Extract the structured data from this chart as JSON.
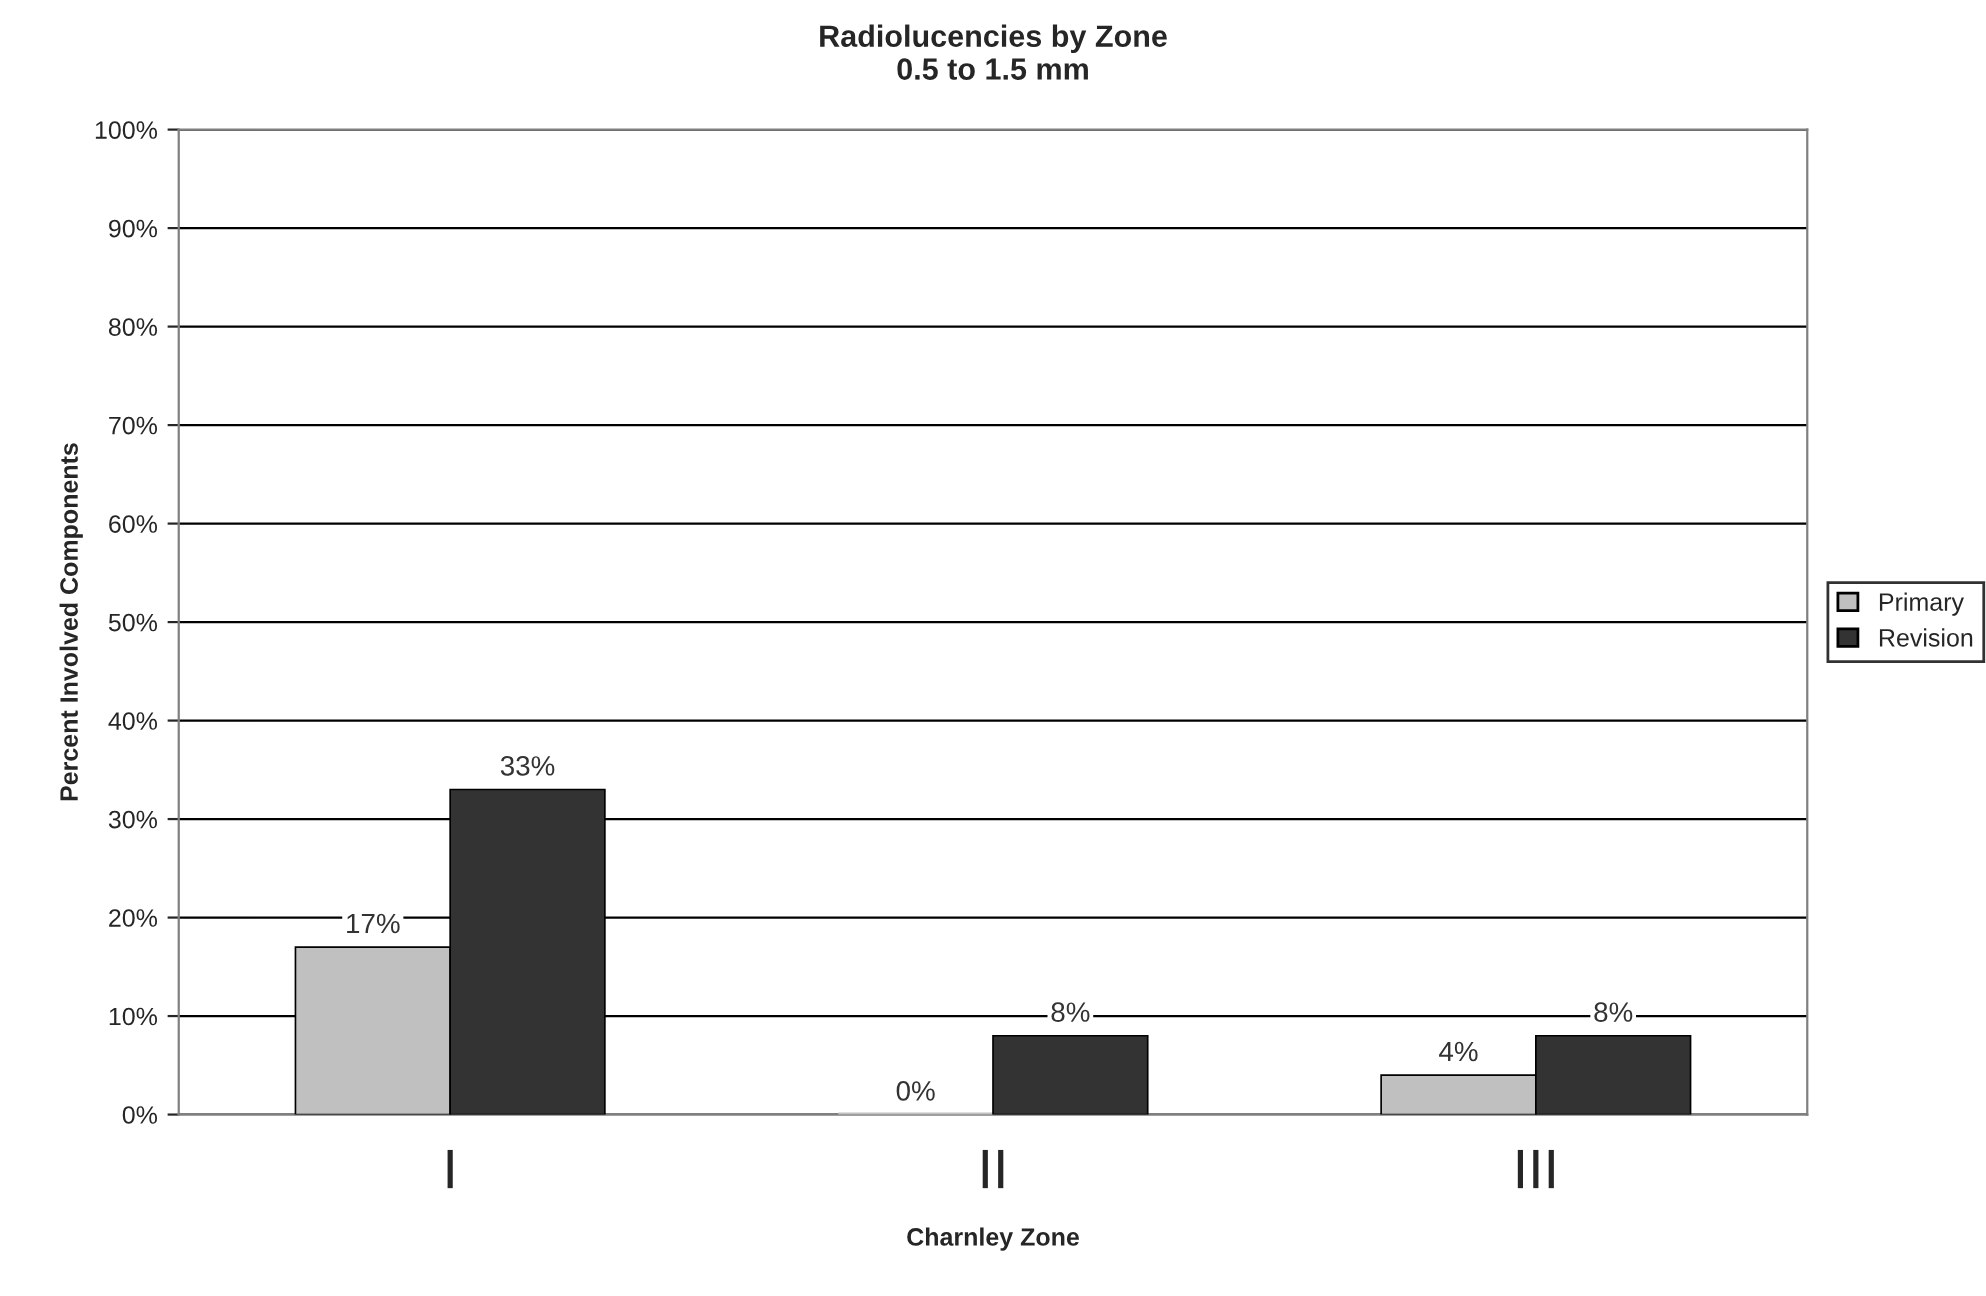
{
  "chart_data": {
    "type": "bar",
    "title": "Radiolucencies by Zone\n0.5 to 1.5 mm",
    "xlabel": "Charnley Zone",
    "ylabel": "Percent Involved Components",
    "categories": [
      "I",
      "II",
      "III"
    ],
    "series": [
      {
        "name": "Primary",
        "color": "#c0c0c0",
        "values": [
          17,
          0,
          4
        ],
        "value_labels": [
          "17%",
          "0%",
          "4%"
        ]
      },
      {
        "name": "Revision",
        "color": "#333333",
        "values": [
          33,
          8,
          8
        ],
        "value_labels": [
          "33%",
          "8%",
          "8%"
        ]
      }
    ],
    "ylim": [
      0,
      100
    ],
    "yticks": [
      {
        "value": 0,
        "label": "0%"
      },
      {
        "value": 10,
        "label": "10%"
      },
      {
        "value": 20,
        "label": "20%"
      },
      {
        "value": 30,
        "label": "30%"
      },
      {
        "value": 40,
        "label": "40%"
      },
      {
        "value": 50,
        "label": "50%"
      },
      {
        "value": 60,
        "label": "60%"
      },
      {
        "value": 70,
        "label": "70%"
      },
      {
        "value": 80,
        "label": "80%"
      },
      {
        "value": 90,
        "label": "90%"
      },
      {
        "value": 100,
        "label": "100%"
      }
    ],
    "grid": "y",
    "legend": "right"
  }
}
